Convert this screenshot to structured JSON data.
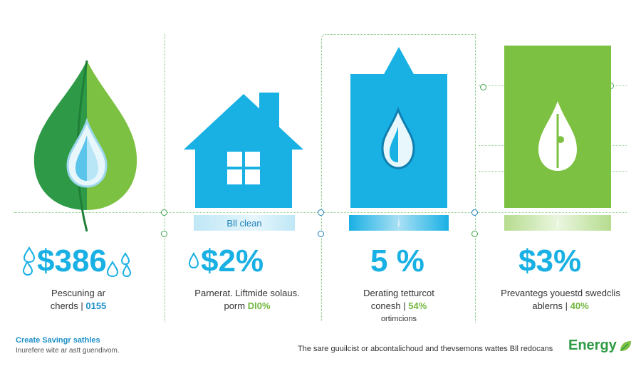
{
  "colors": {
    "blue": "#19b0e4",
    "green": "#7dc142",
    "dark_green": "#2f8f3a",
    "text": "#333333"
  },
  "panels": [
    {
      "stat": "$386",
      "line1": "Pescuning ar",
      "line2_plain": "cherds |",
      "line2_accent": "0155"
    },
    {
      "strip": "Bll clean",
      "stat": "$2%",
      "line1": "Parnerat. Liftmide solaus.",
      "line2_plain": "porm",
      "line2_accent": "Dl0%"
    },
    {
      "strip": "i",
      "stat": "5 %",
      "line1": "Derating tetturcot",
      "line2_plain": "conesh |",
      "line2_accent": "54%",
      "line3": "ortimcions"
    },
    {
      "strip": "i",
      "stat": "$3%",
      "line1": "Prevantegs youestd swedclis",
      "line2_plain": "ablerns |",
      "line2_accent": "40%"
    }
  ],
  "footer": {
    "left_title": "Create Savingr sathles",
    "left_sub": "Inurefere wite ar astt guendivom.",
    "center": "The sare guuilcist or abcontalichoud and thevsemons wattes Bll redocans",
    "brand": "Energy"
  },
  "icons": [
    "leaf-drop-icon",
    "house-icon",
    "water-tank-icon",
    "green-tank-drop-icon"
  ]
}
